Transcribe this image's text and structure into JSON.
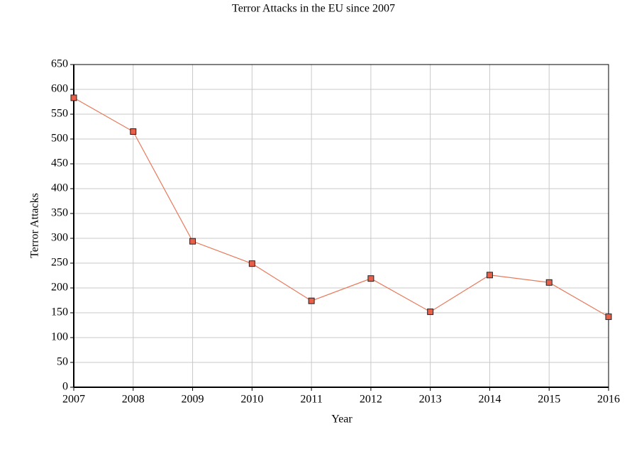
{
  "chart_data": {
    "type": "line",
    "title": "Terror Attacks in the EU since 2007",
    "x_label": "Year",
    "y_label": "Terror Attacks",
    "x": [
      2007,
      2008,
      2009,
      2010,
      2011,
      2012,
      2013,
      2014,
      2015,
      2016
    ],
    "series": [
      {
        "name": "Terror Attacks",
        "color": "#e8795a",
        "marker_color": "#e8604a",
        "values": [
          583,
          515,
          294,
          249,
          174,
          219,
          152,
          226,
          211,
          142
        ]
      }
    ],
    "xlim": [
      2007,
      2016
    ],
    "xticks": [
      2007,
      2008,
      2009,
      2010,
      2011,
      2012,
      2013,
      2014,
      2015,
      2016
    ],
    "ylim": [
      0,
      650
    ],
    "yticks": [
      0,
      50,
      100,
      150,
      200,
      250,
      300,
      350,
      400,
      450,
      500,
      550,
      600,
      650
    ],
    "grid": true
  }
}
